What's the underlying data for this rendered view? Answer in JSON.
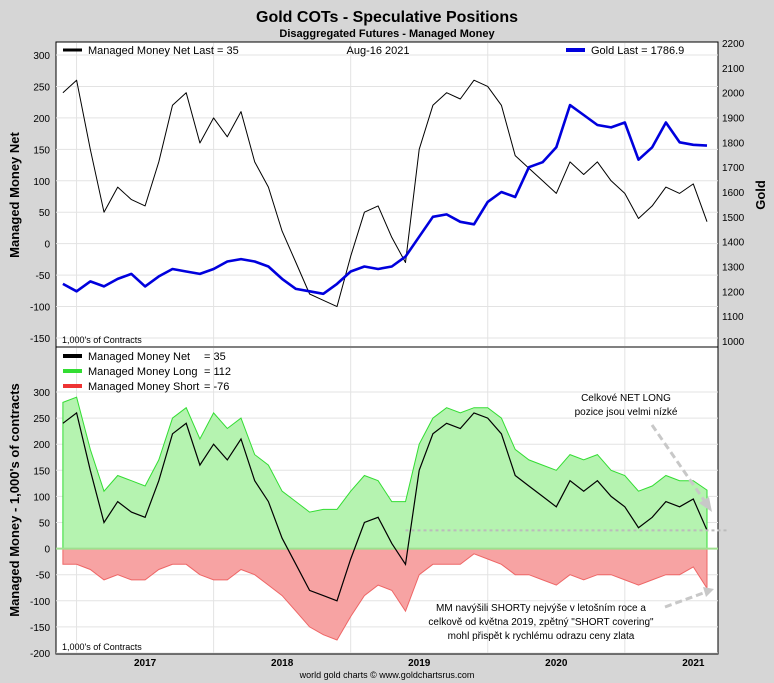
{
  "chart_data": [
    {
      "type": "line",
      "title": "Gold COTs - Speculative Positions",
      "subtitle": "Disaggregated Futures - Managed Money",
      "date_label": "Aug-16  2021",
      "ylabel_left": "Managed Money Net",
      "ylabel_right": "Gold",
      "units_note": "1,000's of Contracts",
      "ylim_left": [
        -150,
        300
      ],
      "ylim_right": [
        1000,
        2200
      ],
      "yticks_left": [
        "300",
        "250",
        "200",
        "150",
        "100",
        "50",
        "0",
        "-50",
        "-100",
        "-150"
      ],
      "yticks_right": [
        "2200",
        "2100",
        "2000",
        "1900",
        "1800",
        "1700",
        "1600",
        "1500",
        "1400",
        "1300",
        "1200",
        "1100",
        "1000"
      ],
      "legend": [
        {
          "label": "Managed Money Net   Last = 35",
          "color": "#000000"
        },
        {
          "label": "Gold Last = 1786.9",
          "color": "#0000dd"
        }
      ],
      "x": [
        2016.9,
        2017.0,
        2017.1,
        2017.2,
        2017.3,
        2017.4,
        2017.5,
        2017.6,
        2017.7,
        2017.8,
        2017.9,
        2018.0,
        2018.1,
        2018.2,
        2018.3,
        2018.4,
        2018.5,
        2018.6,
        2018.7,
        2018.8,
        2018.9,
        2019.0,
        2019.1,
        2019.2,
        2019.3,
        2019.4,
        2019.5,
        2019.6,
        2019.7,
        2019.8,
        2019.9,
        2020.0,
        2020.1,
        2020.2,
        2020.3,
        2020.4,
        2020.5,
        2020.6,
        2020.7,
        2020.8,
        2020.9,
        2021.0,
        2021.1,
        2021.2,
        2021.3,
        2021.4,
        2021.5,
        2021.6
      ],
      "series": [
        {
          "name": "Managed Money Net",
          "axis": "left",
          "color": "#000000",
          "values": [
            240,
            260,
            150,
            50,
            90,
            70,
            60,
            130,
            220,
            240,
            160,
            200,
            170,
            210,
            130,
            90,
            20,
            -30,
            -80,
            -90,
            -100,
            -20,
            50,
            60,
            10,
            -30,
            150,
            220,
            240,
            230,
            260,
            250,
            220,
            140,
            120,
            100,
            80,
            130,
            110,
            130,
            100,
            80,
            40,
            60,
            90,
            80,
            95,
            35
          ]
        },
        {
          "name": "Gold Last = 1786.9",
          "axis": "right",
          "color": "#0000dd",
          "values": [
            1230,
            1200,
            1240,
            1220,
            1250,
            1270,
            1220,
            1260,
            1290,
            1280,
            1270,
            1290,
            1320,
            1330,
            1320,
            1300,
            1250,
            1210,
            1200,
            1190,
            1230,
            1280,
            1300,
            1290,
            1300,
            1340,
            1420,
            1500,
            1510,
            1480,
            1470,
            1560,
            1600,
            1580,
            1700,
            1720,
            1780,
            1950,
            1910,
            1870,
            1860,
            1880,
            1730,
            1780,
            1880,
            1800,
            1790,
            1787
          ]
        }
      ]
    },
    {
      "type": "area",
      "ylabel": "Managed Money - 1,000's of contracts",
      "units_note": "1,000's of Contracts",
      "ylim": [
        -200,
        300
      ],
      "yticks": [
        "300",
        "250",
        "200",
        "150",
        "100",
        "50",
        "0",
        "-50",
        "-100",
        "-150",
        "-200"
      ],
      "xticks": [
        "2017",
        "2018",
        "2019",
        "2020",
        "2021"
      ],
      "legend": [
        {
          "label": "Managed Money Net",
          "value": "= 35",
          "color": "#000000"
        },
        {
          "label": "Managed Money Long",
          "value": "= 112",
          "color": "#33dd33"
        },
        {
          "label": "Managed Money Short",
          "value": "= -76",
          "color": "#ee3333"
        }
      ],
      "x": [
        2016.9,
        2017.0,
        2017.1,
        2017.2,
        2017.3,
        2017.4,
        2017.5,
        2017.6,
        2017.7,
        2017.8,
        2017.9,
        2018.0,
        2018.1,
        2018.2,
        2018.3,
        2018.4,
        2018.5,
        2018.6,
        2018.7,
        2018.8,
        2018.9,
        2019.0,
        2019.1,
        2019.2,
        2019.3,
        2019.4,
        2019.5,
        2019.6,
        2019.7,
        2019.8,
        2019.9,
        2020.0,
        2020.1,
        2020.2,
        2020.3,
        2020.4,
        2020.5,
        2020.6,
        2020.7,
        2020.8,
        2020.9,
        2021.0,
        2021.1,
        2021.2,
        2021.3,
        2021.4,
        2021.5,
        2021.6
      ],
      "series": [
        {
          "name": "Managed Money Net",
          "color": "#000000",
          "values": [
            240,
            260,
            150,
            50,
            90,
            70,
            60,
            130,
            220,
            240,
            160,
            200,
            170,
            210,
            130,
            90,
            20,
            -30,
            -80,
            -90,
            -100,
            -20,
            50,
            60,
            10,
            -30,
            150,
            220,
            240,
            230,
            260,
            250,
            220,
            140,
            120,
            100,
            80,
            130,
            110,
            130,
            100,
            80,
            40,
            60,
            90,
            80,
            95,
            35
          ]
        },
        {
          "name": "Managed Money Long",
          "color": "#33dd33",
          "values": [
            280,
            290,
            190,
            110,
            140,
            130,
            120,
            170,
            250,
            270,
            210,
            260,
            230,
            250,
            180,
            160,
            110,
            90,
            70,
            75,
            75,
            110,
            140,
            130,
            90,
            90,
            200,
            250,
            270,
            260,
            270,
            270,
            250,
            190,
            170,
            160,
            150,
            180,
            170,
            180,
            150,
            140,
            110,
            120,
            140,
            130,
            130,
            112
          ]
        },
        {
          "name": "Managed Money Short",
          "color": "#ee3333",
          "values": [
            -30,
            -30,
            -40,
            -60,
            -50,
            -60,
            -60,
            -40,
            -30,
            -30,
            -50,
            -60,
            -60,
            -40,
            -50,
            -70,
            -90,
            -120,
            -150,
            -165,
            -175,
            -130,
            -90,
            -70,
            -80,
            -120,
            -50,
            -30,
            -30,
            -30,
            -10,
            -20,
            -30,
            -50,
            -50,
            -60,
            -70,
            -50,
            -60,
            -50,
            -50,
            -60,
            -70,
            -60,
            -50,
            -50,
            -35,
            -76
          ]
        }
      ],
      "annotations": [
        "Celkové NET LONG pozice jsou velmi nízké",
        "MM navýšili SHORTy nejvýše v letošním roce a celkově od května 2019, zpětný \"SHORT covering\" mohl přispět k rychlému odrazu ceny zlata"
      ]
    }
  ],
  "footer": "world gold charts © www.goldchartsrus.com"
}
